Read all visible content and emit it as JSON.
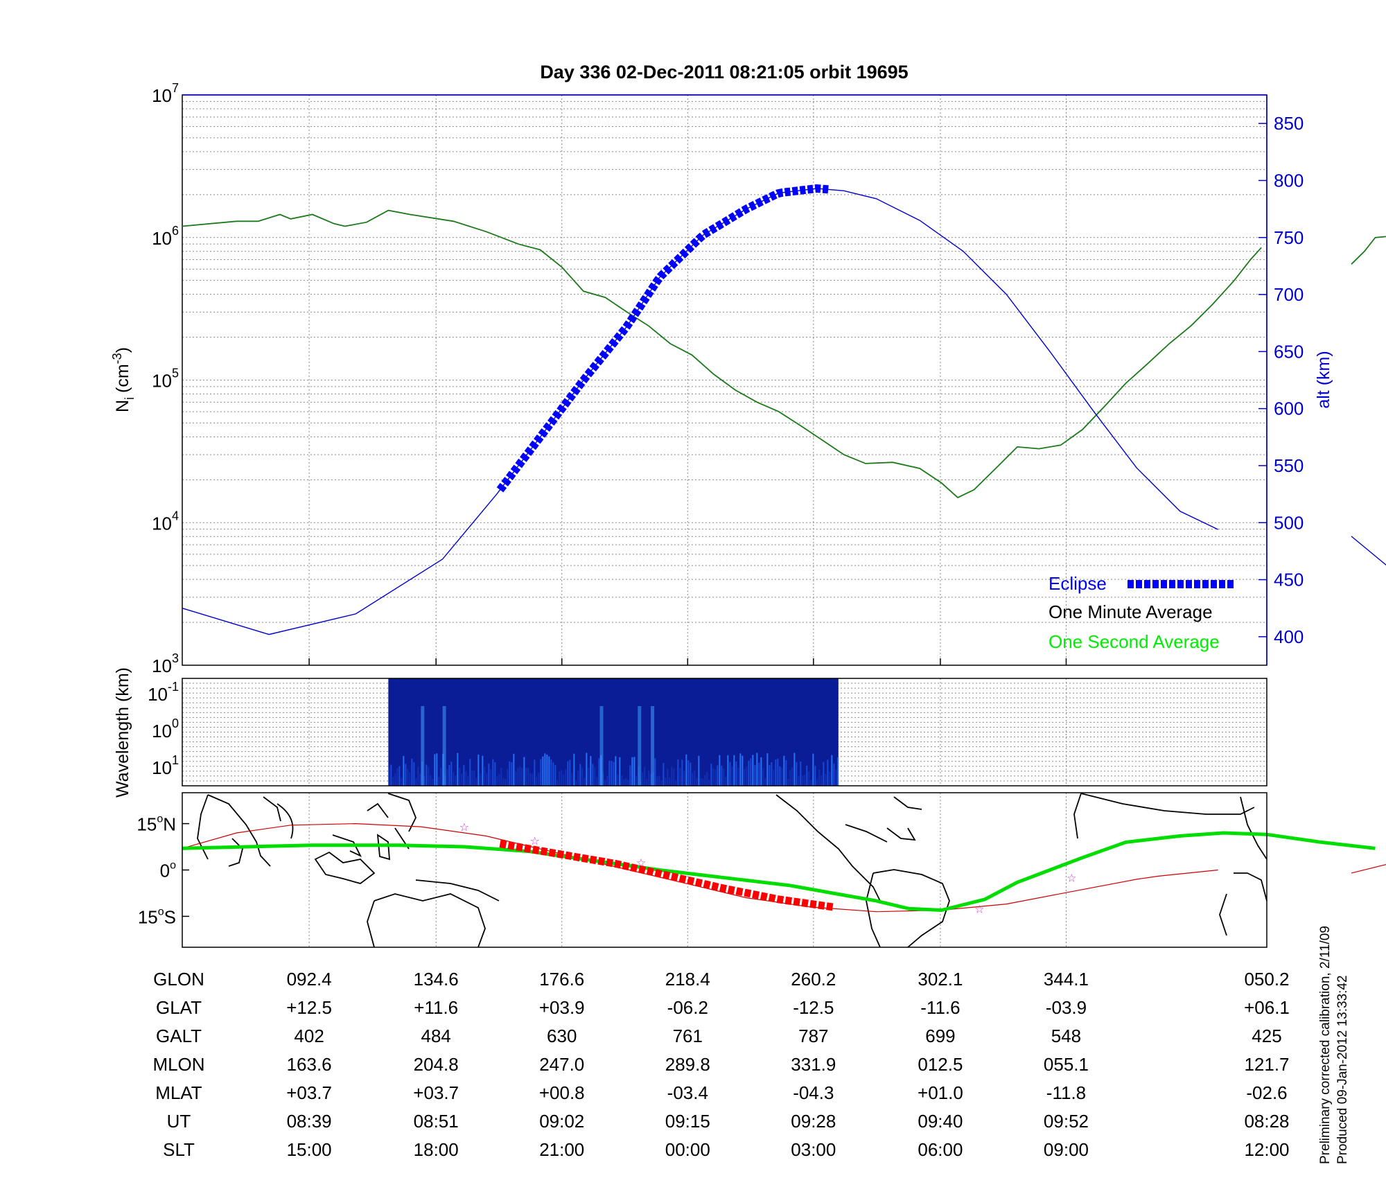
{
  "title": "Day 336  02-Dec-2011 08:21:05   orbit 19695",
  "colors": {
    "density_line": "#1a7a1a",
    "one_second": "#00ee00",
    "altitude": "#0000cc",
    "eclipse": "#0000ff",
    "track_footprint": "#00dd00",
    "track_eclipse": "#ff0000",
    "track_thin": "#cc0000",
    "star": "#cc33cc",
    "grid": "#888888"
  },
  "chart_data": [
    {
      "type": "line",
      "panel": "ion_density_altitude",
      "ylabel_left": "N",
      "ylabel_left_sub": "i",
      "ylabel_left_unit": "(cm",
      "ylabel_left_exp": "-3",
      "ylabel_right": "alt (km)",
      "yscale_left": "log",
      "ylim_left": [
        1000,
        10000000
      ],
      "ylim_right": [
        375,
        875
      ],
      "left_ticks": [
        {
          "base": "10",
          "exp": "3"
        },
        {
          "base": "10",
          "exp": "4"
        },
        {
          "base": "10",
          "exp": "5"
        },
        {
          "base": "10",
          "exp": "6"
        },
        {
          "base": "10",
          "exp": "7"
        }
      ],
      "right_ticks": [
        "400",
        "450",
        "500",
        "550",
        "600",
        "650",
        "700",
        "750",
        "800",
        "850"
      ],
      "grid": true,
      "legend": {
        "placement": "bottom-right",
        "entries": [
          {
            "label": "Eclipse",
            "color": "#0000ff"
          },
          {
            "label": "One Minute Average",
            "color": "#000000"
          },
          {
            "label": "One Second Average",
            "color": "#00ee00"
          }
        ]
      },
      "series": [
        {
          "name": "One Minute Average",
          "segments": [
            [
              [
                0,
                1200000
              ],
              [
                0.05,
                1300000
              ],
              [
                0.07,
                1300000
              ],
              [
                0.09,
                1450000
              ],
              [
                0.1,
                1350000
              ],
              [
                0.12,
                1450000
              ],
              [
                0.14,
                1250000
              ],
              [
                0.15,
                1200000
              ],
              [
                0.17,
                1280000
              ],
              [
                0.19,
                1550000
              ],
              [
                0.21,
                1450000
              ],
              [
                0.25,
                1300000
              ],
              [
                0.28,
                1100000
              ],
              [
                0.31,
                900000
              ],
              [
                0.33,
                820000
              ],
              [
                0.35,
                620000
              ],
              [
                0.37,
                420000
              ],
              [
                0.39,
                380000
              ],
              [
                0.41,
                300000
              ],
              [
                0.43,
                240000
              ],
              [
                0.45,
                180000
              ],
              [
                0.47,
                150000
              ],
              [
                0.49,
                110000
              ],
              [
                0.51,
                85000
              ],
              [
                0.53,
                70000
              ],
              [
                0.55,
                60000
              ],
              [
                0.57,
                48000
              ],
              [
                0.59,
                38000
              ],
              [
                0.61,
                30000
              ],
              [
                0.63,
                26000
              ],
              [
                0.655,
                26500
              ],
              [
                0.68,
                24000
              ],
              [
                0.7,
                19000
              ],
              [
                0.715,
                15000
              ],
              [
                0.73,
                17000
              ],
              [
                0.75,
                24000
              ],
              [
                0.77,
                34000
              ],
              [
                0.79,
                33000
              ],
              [
                0.81,
                35000
              ],
              [
                0.83,
                45000
              ],
              [
                0.85,
                65000
              ],
              [
                0.87,
                95000
              ],
              [
                0.89,
                130000
              ],
              [
                0.91,
                180000
              ],
              [
                0.93,
                240000
              ],
              [
                0.95,
                340000
              ],
              [
                0.97,
                500000
              ],
              [
                0.985,
                700000
              ],
              [
                0.995,
                850000
              ]
            ],
            [
              [
                1.078,
                650000
              ],
              [
                1.09,
                800000
              ],
              [
                1.1,
                1000000
              ],
              [
                1.13,
                1050000
              ],
              [
                1.15,
                1100000
              ],
              [
                1.17,
                1150000
              ]
            ]
          ]
        },
        {
          "name": "Altitude",
          "axis": "right",
          "segments": [
            [
              [
                0,
                425
              ],
              [
                0.08,
                402
              ],
              [
                0.16,
                420
              ],
              [
                0.24,
                468
              ],
              [
                0.29,
                525
              ],
              [
                0.33,
                575
              ],
              [
                0.37,
                625
              ],
              [
                0.41,
                672
              ],
              [
                0.44,
                715
              ],
              [
                0.48,
                752
              ],
              [
                0.52,
                775
              ],
              [
                0.55,
                789
              ],
              [
                0.585,
                793
              ],
              [
                0.61,
                791
              ],
              [
                0.64,
                784
              ],
              [
                0.68,
                765
              ],
              [
                0.72,
                738
              ],
              [
                0.76,
                700
              ],
              [
                0.8,
                650
              ],
              [
                0.84,
                598
              ],
              [
                0.88,
                548
              ],
              [
                0.92,
                510
              ],
              [
                0.955,
                494
              ]
            ],
            [
              [
                1.078,
                488
              ],
              [
                1.12,
                455
              ],
              [
                1.17,
                425
              ]
            ]
          ]
        },
        {
          "name": "Eclipse",
          "axis": "right",
          "x": [
            0.293,
            0.6
          ]
        }
      ],
      "x_axis_fraction_note": ""
    },
    {
      "type": "heatmap",
      "panel": "wavelength",
      "ylabel": "Wavelength (km)",
      "ytick_labels": [
        {
          "base": "10",
          "exp": "-1"
        },
        {
          "base": "10",
          "exp": "0"
        },
        {
          "base": "10",
          "exp": "1"
        }
      ],
      "x_range": [
        0.19,
        0.605
      ]
    },
    {
      "type": "line",
      "panel": "map",
      "ytick_labels": [
        {
          "val": "15",
          "hemi": "N"
        },
        {
          "val": "0",
          "hemi": ""
        },
        {
          "val": "15",
          "hemi": "S"
        }
      ],
      "ylim": [
        -25,
        25
      ]
    }
  ],
  "table": {
    "rows": [
      {
        "label": "GLON",
        "values": [
          "092.4",
          "134.6",
          "176.6",
          "218.4",
          "260.2",
          "302.1",
          "344.1",
          "050.2"
        ]
      },
      {
        "label": "GLAT",
        "values": [
          "+12.5",
          "+11.6",
          "+03.9",
          "-06.2",
          "-12.5",
          "-11.6",
          "-03.9",
          "+06.1"
        ]
      },
      {
        "label": "GALT",
        "values": [
          "402",
          "484",
          "630",
          "761",
          "787",
          "699",
          "548",
          "425"
        ]
      },
      {
        "label": "MLON",
        "values": [
          "163.6",
          "204.8",
          "247.0",
          "289.8",
          "331.9",
          "012.5",
          "055.1",
          "121.7"
        ]
      },
      {
        "label": "MLAT",
        "values": [
          "+03.7",
          "+03.7",
          "+00.8",
          "-03.4",
          "-04.3",
          "+01.0",
          "-11.8",
          "-02.6"
        ]
      },
      {
        "label": "UT",
        "values": [
          "08:39",
          "08:51",
          "09:02",
          "09:15",
          "09:28",
          "09:40",
          "09:52",
          "08:28"
        ]
      },
      {
        "label": "SLT",
        "values": [
          "15:00",
          "18:00",
          "21:00",
          "00:00",
          "03:00",
          "06:00",
          "09:00",
          "12:00"
        ]
      }
    ]
  },
  "footer": {
    "line1": "Preliminary corrected calibration, 2/11/09",
    "line2": "Produced 09-Jan-2012 13:33:42"
  }
}
